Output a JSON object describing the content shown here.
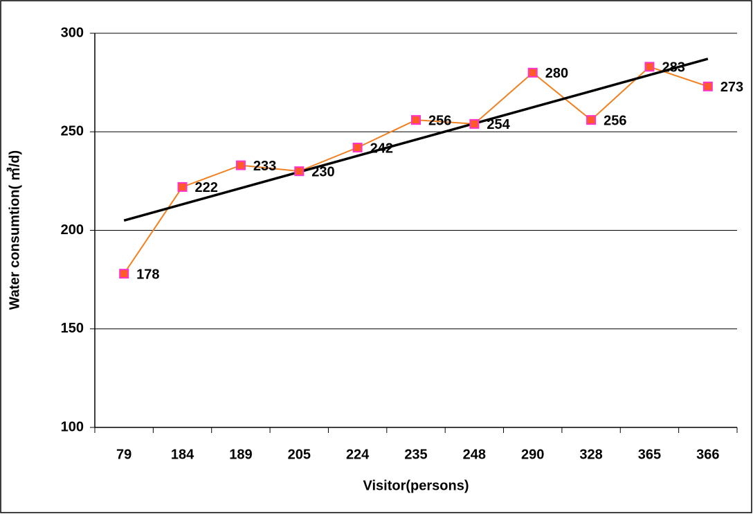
{
  "chart_data": {
    "type": "line",
    "x_label": "Visitor(persons)",
    "y_label": "Water consumtion( ㎥/d)",
    "categories": [
      "79",
      "184",
      "189",
      "205",
      "224",
      "235",
      "248",
      "290",
      "328",
      "365",
      "366"
    ],
    "series": [
      {
        "color": "#f08020",
        "marker_fill": "#ff5a28",
        "marker_stroke": "#ff33cc",
        "values": [
          178,
          222,
          233,
          230,
          242,
          256,
          254,
          280,
          256,
          283,
          273
        ]
      }
    ],
    "trendline": {
      "color": "#000000",
      "start": 205,
      "end": 287
    },
    "ylim": [
      100,
      300
    ],
    "yticks": [
      100,
      150,
      200,
      250,
      300
    ],
    "grid": true
  }
}
